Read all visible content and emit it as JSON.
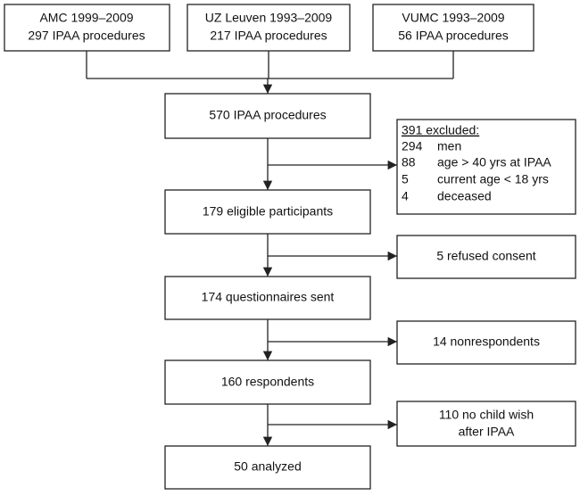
{
  "sources": [
    {
      "name": "AMC 1999–2009",
      "procedures": "297 IPAA procedures"
    },
    {
      "name": "UZ Leuven 1993–2009",
      "procedures": "217 IPAA procedures"
    },
    {
      "name": "VUMC  1993–2009",
      "procedures": "56 IPAA procedures"
    }
  ],
  "steps": [
    "570 IPAA procedures",
    "179 eligible participants",
    "174 questionnaires sent",
    "160 respondents",
    "50 analyzed"
  ],
  "excluded": {
    "title": "391 excluded:",
    "items": [
      {
        "count": "294",
        "reason": "men"
      },
      {
        "count": "88",
        "reason": "age > 40 yrs at IPAA"
      },
      {
        "count": "5",
        "reason": "current age < 18 yrs"
      },
      {
        "count": "4",
        "reason": "deceased"
      }
    ]
  },
  "losses": [
    [
      "5 refused consent"
    ],
    [
      "14 nonrespondents"
    ],
    [
      "110 no child wish",
      "after IPAA"
    ]
  ]
}
